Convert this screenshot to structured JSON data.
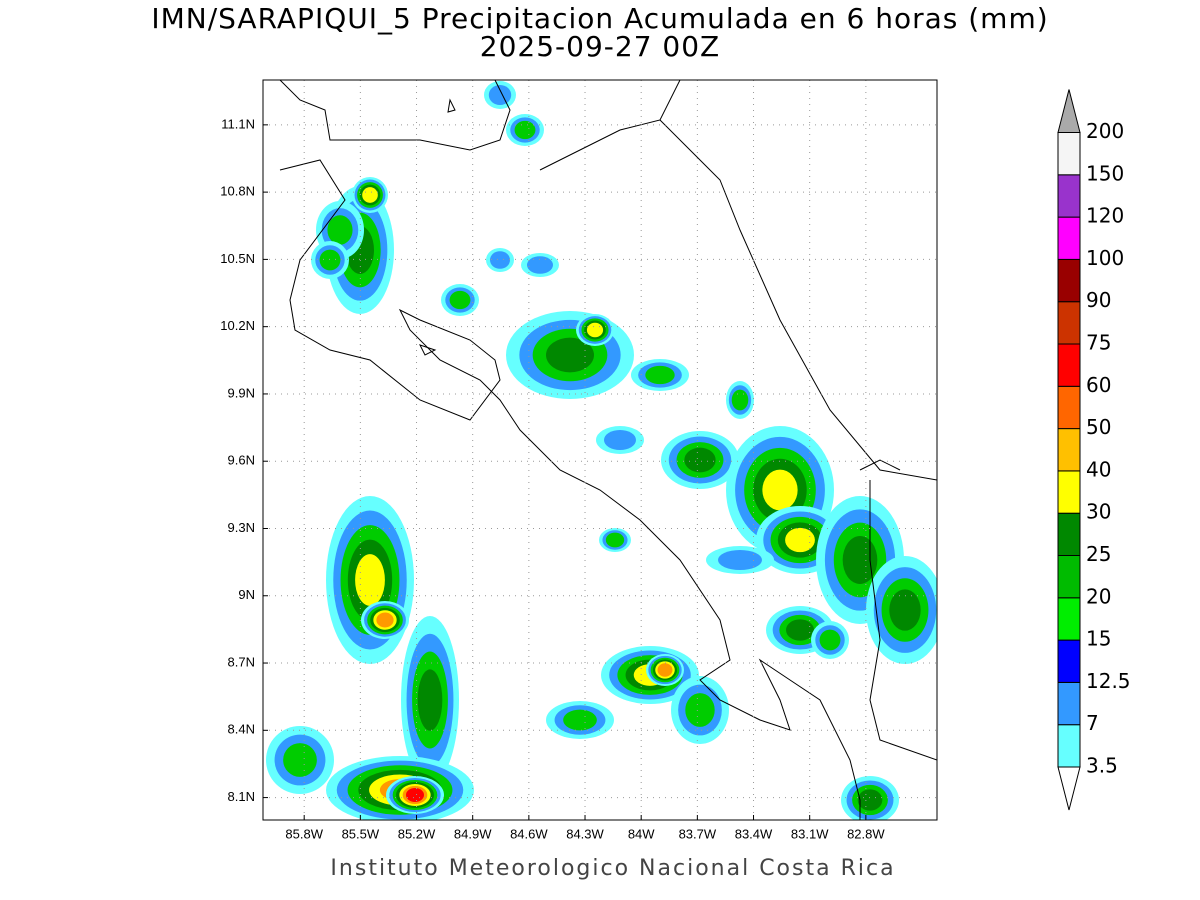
{
  "header": {
    "title": "IMN/SARAPIQUI_5 Precipitacion Acumulada en 6 horas (mm)",
    "subtitle": "2025-09-27 00Z"
  },
  "map": {
    "xlim": [
      -86.02,
      -82.42
    ],
    "ylim": [
      8.0,
      11.3
    ],
    "grid": true,
    "xticks": [
      {
        "value": -85.8,
        "label": "85.8W"
      },
      {
        "value": -85.5,
        "label": "85.5W"
      },
      {
        "value": -85.2,
        "label": "85.2W"
      },
      {
        "value": -84.9,
        "label": "84.9W"
      },
      {
        "value": -84.6,
        "label": "84.6W"
      },
      {
        "value": -84.3,
        "label": "84.3W"
      },
      {
        "value": -84,
        "label": "84W"
      },
      {
        "value": -83.7,
        "label": "83.7W"
      },
      {
        "value": -83.4,
        "label": "83.4W"
      },
      {
        "value": -83.1,
        "label": "83.1W"
      },
      {
        "value": -82.8,
        "label": "82.8W"
      }
    ],
    "yticks": [
      {
        "value": 8.1,
        "label": "8.1N"
      },
      {
        "value": 8.4,
        "label": "8.4N"
      },
      {
        "value": 8.7,
        "label": "8.7N"
      },
      {
        "value": 9,
        "label": "9N"
      },
      {
        "value": 9.3,
        "label": "9.3N"
      },
      {
        "value": 9.6,
        "label": "9.6N"
      },
      {
        "value": 9.9,
        "label": "9.9N"
      },
      {
        "value": 10.2,
        "label": "10.2N"
      },
      {
        "value": 10.5,
        "label": "10.5N"
      },
      {
        "value": 10.8,
        "label": "10.8N"
      },
      {
        "value": 11.1,
        "label": "11.1N"
      }
    ]
  },
  "colorbar": {
    "levels": [
      3.5,
      7,
      12.5,
      15,
      20,
      25,
      30,
      40,
      50,
      60,
      75,
      90,
      100,
      120,
      150,
      200
    ],
    "colors": [
      "#66ffff",
      "#3399ff",
      "#0000ff",
      "#00ee00",
      "#00bb00",
      "#008800",
      "#ffff00",
      "#ffc000",
      "#ff6600",
      "#ff0000",
      "#cc3300",
      "#990000",
      "#ff00ff",
      "#9933cc",
      "#f5f5f5"
    ],
    "below_color": "#ffffff",
    "above_color": "#aaaaaa"
  },
  "footer": {
    "credit": "Instituto Meteorologico Nacional Costa Rica"
  }
}
